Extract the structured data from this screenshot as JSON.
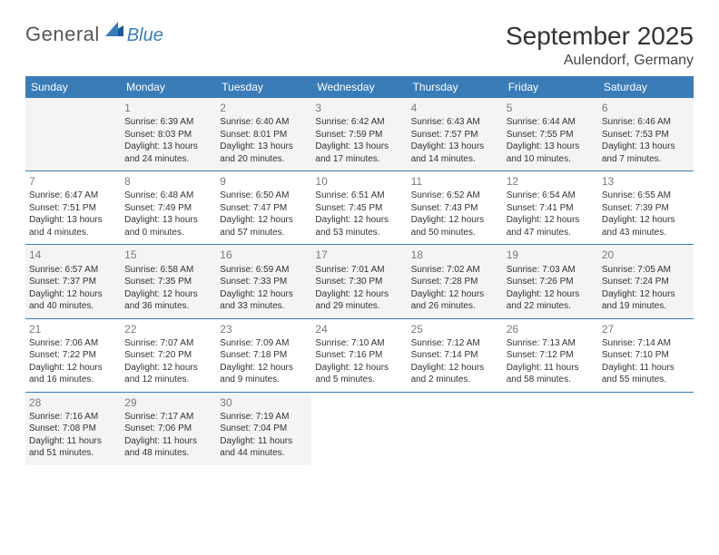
{
  "logo": {
    "general": "General",
    "blue": "Blue"
  },
  "title": "September 2025",
  "location": "Aulendorf, Germany",
  "colors": {
    "header_bar": "#3a7cb8",
    "header_text": "#ffffff",
    "daynum": "#7a7a7a",
    "body_text": "#333333",
    "muted_bg": "#f4f4f4",
    "page_bg": "#ffffff",
    "row_border": "#3a7cb8"
  },
  "weekdays": [
    "Sunday",
    "Monday",
    "Tuesday",
    "Wednesday",
    "Thursday",
    "Friday",
    "Saturday"
  ],
  "weeks": [
    [
      {
        "day": "",
        "muted": true,
        "sunrise": "",
        "sunset": "",
        "daylight": ""
      },
      {
        "day": "1",
        "muted": true,
        "sunrise": "Sunrise: 6:39 AM",
        "sunset": "Sunset: 8:03 PM",
        "daylight": "Daylight: 13 hours and 24 minutes."
      },
      {
        "day": "2",
        "muted": true,
        "sunrise": "Sunrise: 6:40 AM",
        "sunset": "Sunset: 8:01 PM",
        "daylight": "Daylight: 13 hours and 20 minutes."
      },
      {
        "day": "3",
        "muted": true,
        "sunrise": "Sunrise: 6:42 AM",
        "sunset": "Sunset: 7:59 PM",
        "daylight": "Daylight: 13 hours and 17 minutes."
      },
      {
        "day": "4",
        "muted": true,
        "sunrise": "Sunrise: 6:43 AM",
        "sunset": "Sunset: 7:57 PM",
        "daylight": "Daylight: 13 hours and 14 minutes."
      },
      {
        "day": "5",
        "muted": true,
        "sunrise": "Sunrise: 6:44 AM",
        "sunset": "Sunset: 7:55 PM",
        "daylight": "Daylight: 13 hours and 10 minutes."
      },
      {
        "day": "6",
        "muted": true,
        "sunrise": "Sunrise: 6:46 AM",
        "sunset": "Sunset: 7:53 PM",
        "daylight": "Daylight: 13 hours and 7 minutes."
      }
    ],
    [
      {
        "day": "7",
        "muted": false,
        "sunrise": "Sunrise: 6:47 AM",
        "sunset": "Sunset: 7:51 PM",
        "daylight": "Daylight: 13 hours and 4 minutes."
      },
      {
        "day": "8",
        "muted": false,
        "sunrise": "Sunrise: 6:48 AM",
        "sunset": "Sunset: 7:49 PM",
        "daylight": "Daylight: 13 hours and 0 minutes."
      },
      {
        "day": "9",
        "muted": false,
        "sunrise": "Sunrise: 6:50 AM",
        "sunset": "Sunset: 7:47 PM",
        "daylight": "Daylight: 12 hours and 57 minutes."
      },
      {
        "day": "10",
        "muted": false,
        "sunrise": "Sunrise: 6:51 AM",
        "sunset": "Sunset: 7:45 PM",
        "daylight": "Daylight: 12 hours and 53 minutes."
      },
      {
        "day": "11",
        "muted": false,
        "sunrise": "Sunrise: 6:52 AM",
        "sunset": "Sunset: 7:43 PM",
        "daylight": "Daylight: 12 hours and 50 minutes."
      },
      {
        "day": "12",
        "muted": false,
        "sunrise": "Sunrise: 6:54 AM",
        "sunset": "Sunset: 7:41 PM",
        "daylight": "Daylight: 12 hours and 47 minutes."
      },
      {
        "day": "13",
        "muted": false,
        "sunrise": "Sunrise: 6:55 AM",
        "sunset": "Sunset: 7:39 PM",
        "daylight": "Daylight: 12 hours and 43 minutes."
      }
    ],
    [
      {
        "day": "14",
        "muted": true,
        "sunrise": "Sunrise: 6:57 AM",
        "sunset": "Sunset: 7:37 PM",
        "daylight": "Daylight: 12 hours and 40 minutes."
      },
      {
        "day": "15",
        "muted": true,
        "sunrise": "Sunrise: 6:58 AM",
        "sunset": "Sunset: 7:35 PM",
        "daylight": "Daylight: 12 hours and 36 minutes."
      },
      {
        "day": "16",
        "muted": true,
        "sunrise": "Sunrise: 6:59 AM",
        "sunset": "Sunset: 7:33 PM",
        "daylight": "Daylight: 12 hours and 33 minutes."
      },
      {
        "day": "17",
        "muted": true,
        "sunrise": "Sunrise: 7:01 AM",
        "sunset": "Sunset: 7:30 PM",
        "daylight": "Daylight: 12 hours and 29 minutes."
      },
      {
        "day": "18",
        "muted": true,
        "sunrise": "Sunrise: 7:02 AM",
        "sunset": "Sunset: 7:28 PM",
        "daylight": "Daylight: 12 hours and 26 minutes."
      },
      {
        "day": "19",
        "muted": true,
        "sunrise": "Sunrise: 7:03 AM",
        "sunset": "Sunset: 7:26 PM",
        "daylight": "Daylight: 12 hours and 22 minutes."
      },
      {
        "day": "20",
        "muted": true,
        "sunrise": "Sunrise: 7:05 AM",
        "sunset": "Sunset: 7:24 PM",
        "daylight": "Daylight: 12 hours and 19 minutes."
      }
    ],
    [
      {
        "day": "21",
        "muted": false,
        "sunrise": "Sunrise: 7:06 AM",
        "sunset": "Sunset: 7:22 PM",
        "daylight": "Daylight: 12 hours and 16 minutes."
      },
      {
        "day": "22",
        "muted": false,
        "sunrise": "Sunrise: 7:07 AM",
        "sunset": "Sunset: 7:20 PM",
        "daylight": "Daylight: 12 hours and 12 minutes."
      },
      {
        "day": "23",
        "muted": false,
        "sunrise": "Sunrise: 7:09 AM",
        "sunset": "Sunset: 7:18 PM",
        "daylight": "Daylight: 12 hours and 9 minutes."
      },
      {
        "day": "24",
        "muted": false,
        "sunrise": "Sunrise: 7:10 AM",
        "sunset": "Sunset: 7:16 PM",
        "daylight": "Daylight: 12 hours and 5 minutes."
      },
      {
        "day": "25",
        "muted": false,
        "sunrise": "Sunrise: 7:12 AM",
        "sunset": "Sunset: 7:14 PM",
        "daylight": "Daylight: 12 hours and 2 minutes."
      },
      {
        "day": "26",
        "muted": false,
        "sunrise": "Sunrise: 7:13 AM",
        "sunset": "Sunset: 7:12 PM",
        "daylight": "Daylight: 11 hours and 58 minutes."
      },
      {
        "day": "27",
        "muted": false,
        "sunrise": "Sunrise: 7:14 AM",
        "sunset": "Sunset: 7:10 PM",
        "daylight": "Daylight: 11 hours and 55 minutes."
      }
    ],
    [
      {
        "day": "28",
        "muted": true,
        "sunrise": "Sunrise: 7:16 AM",
        "sunset": "Sunset: 7:08 PM",
        "daylight": "Daylight: 11 hours and 51 minutes."
      },
      {
        "day": "29",
        "muted": true,
        "sunrise": "Sunrise: 7:17 AM",
        "sunset": "Sunset: 7:06 PM",
        "daylight": "Daylight: 11 hours and 48 minutes."
      },
      {
        "day": "30",
        "muted": true,
        "sunrise": "Sunrise: 7:19 AM",
        "sunset": "Sunset: 7:04 PM",
        "daylight": "Daylight: 11 hours and 44 minutes."
      },
      {
        "day": "",
        "muted": false,
        "sunrise": "",
        "sunset": "",
        "daylight": ""
      },
      {
        "day": "",
        "muted": false,
        "sunrise": "",
        "sunset": "",
        "daylight": ""
      },
      {
        "day": "",
        "muted": false,
        "sunrise": "",
        "sunset": "",
        "daylight": ""
      },
      {
        "day": "",
        "muted": false,
        "sunrise": "",
        "sunset": "",
        "daylight": ""
      }
    ]
  ]
}
